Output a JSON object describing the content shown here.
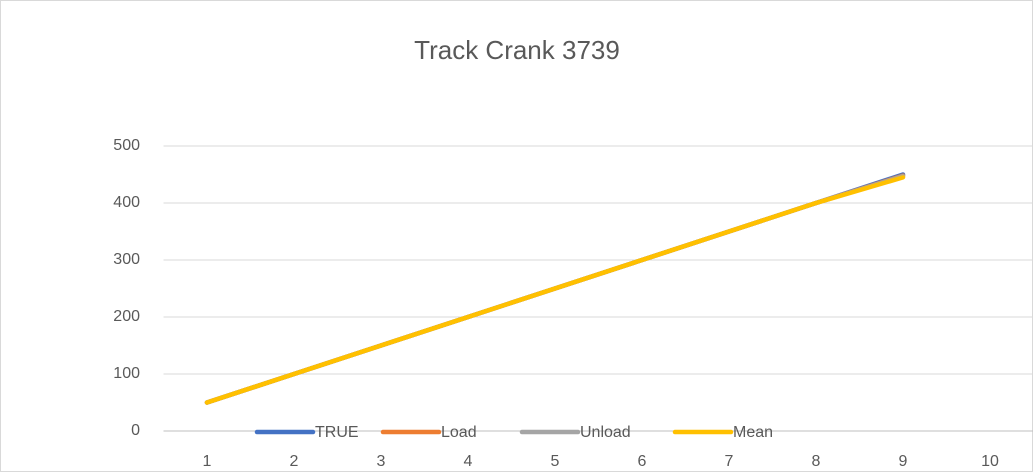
{
  "chart_data": {
    "type": "line",
    "title": "Track Crank 3739",
    "categories": [
      1,
      2,
      3,
      4,
      5,
      6,
      7,
      8,
      9,
      10
    ],
    "series": [
      {
        "name": "TRUE",
        "color": "#4472c4",
        "values": [
          50,
          100,
          150,
          200,
          250,
          300,
          350,
          400,
          450,
          null
        ]
      },
      {
        "name": "Load",
        "color": "#ed7d31",
        "values": [
          50,
          100,
          150,
          200,
          250,
          300,
          350,
          400,
          448,
          null
        ]
      },
      {
        "name": "Unload",
        "color": "#a5a5a5",
        "values": [
          50,
          100,
          150,
          200,
          250,
          300,
          350,
          400,
          447,
          null
        ]
      },
      {
        "name": "Mean",
        "color": "#ffc000",
        "values": [
          50,
          100,
          150,
          200,
          250,
          300,
          350,
          400,
          445,
          null
        ]
      }
    ],
    "ylim": [
      0,
      500
    ],
    "yticks": [
      0,
      100,
      200,
      300,
      400,
      500
    ],
    "grid": true,
    "legend": "bottom"
  }
}
